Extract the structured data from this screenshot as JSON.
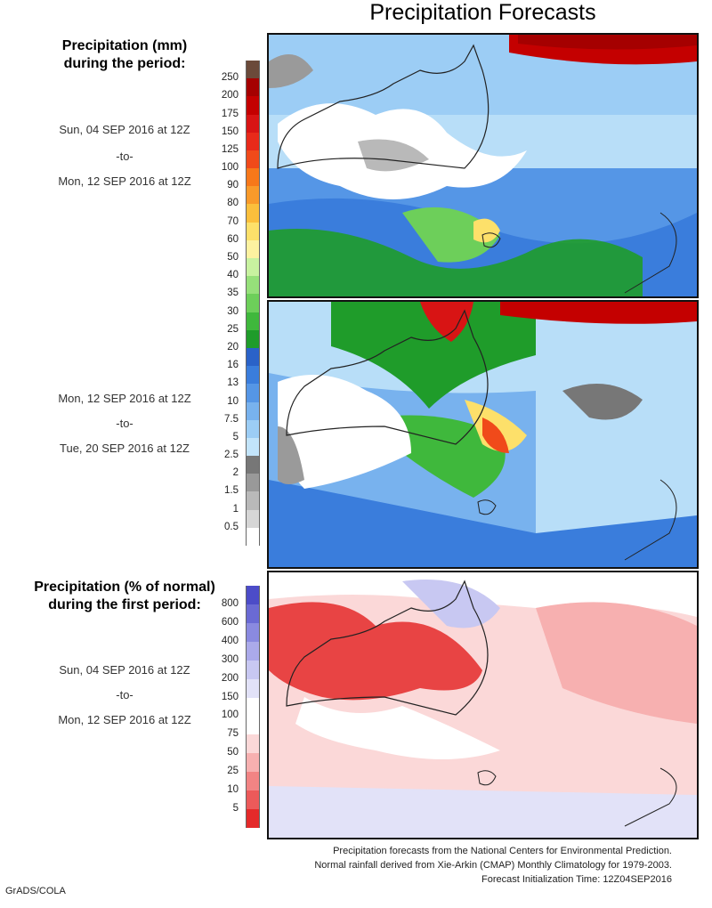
{
  "title": "Precipitation Forecasts",
  "precip_legend": {
    "heading": [
      "Precipitation (mm)",
      "during the period:"
    ],
    "levels": [
      "250",
      "200",
      "175",
      "150",
      "125",
      "100",
      "90",
      "80",
      "70",
      "60",
      "50",
      "40",
      "35",
      "30",
      "25",
      "20",
      "16",
      "13",
      "10",
      "7.5",
      "5",
      "2.5",
      "2",
      "1.5",
      "1",
      "0.5"
    ],
    "colors": [
      "#6b4a3a",
      "#a50000",
      "#c40000",
      "#d81414",
      "#e82a1a",
      "#f04a1a",
      "#f7781a",
      "#f99a2a",
      "#fbbf3c",
      "#fde06a",
      "#fdf2a0",
      "#c8f2a0",
      "#96e07a",
      "#6dcf5a",
      "#3fb83c",
      "#1f9c2a",
      "#2a62c8",
      "#3a7ddc",
      "#5596e6",
      "#78b2ee",
      "#9ccdf5",
      "#c2e4fa",
      "#777777",
      "#999999",
      "#b9b9b9",
      "#d6d6d6",
      "#ffffff"
    ]
  },
  "period1": {
    "start": "Sun, 04 SEP 2016 at 12Z",
    "sep": "-to-",
    "end": "Mon, 12 SEP 2016 at 12Z"
  },
  "period2": {
    "start": "Mon, 12 SEP 2016 at 12Z",
    "sep": "-to-",
    "end": "Tue, 20 SEP 2016 at 12Z"
  },
  "pct_legend": {
    "heading": [
      "Precipitation (% of normal)",
      "during the first period:"
    ],
    "levels": [
      "800",
      "600",
      "400",
      "300",
      "200",
      "150",
      "100",
      "75",
      "50",
      "25",
      "10",
      "5"
    ],
    "colors": [
      "#4c4cc8",
      "#6a6ad4",
      "#8a8ae0",
      "#abaaea",
      "#c8c8f2",
      "#e2e2f8",
      "#ffffff",
      "#ffffff",
      "#fbd8d8",
      "#f7b0b0",
      "#f28484",
      "#ec5a5a",
      "#e42a2a"
    ]
  },
  "period3": {
    "start": "Sun, 04 SEP 2016 at 12Z",
    "sep": "-to-",
    "end": "Mon, 12 SEP 2016 at 12Z"
  },
  "credits": [
    "Precipitation forecasts from the National Centers for Environmental Prediction.",
    "Normal rainfall derived from Xie-Arkin (CMAP) Monthly Climatology for 1979-2003.",
    "Forecast Initialization Time: 12Z04SEP2016"
  ],
  "software": "GrADS/COLA"
}
